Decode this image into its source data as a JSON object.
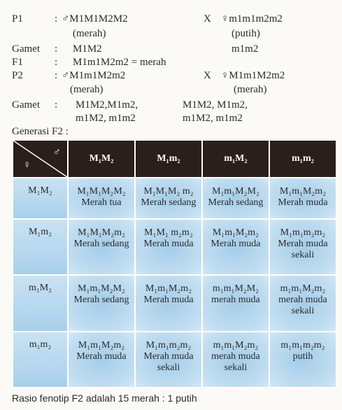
{
  "cross": {
    "p1": {
      "label": "P1",
      "colon": ":",
      "male_genotype": "♂M1M1M2M2",
      "x": "X",
      "female_genotype": "♀m1m1m2m2",
      "male_phenotype": "(merah)",
      "female_phenotype": "(putih)"
    },
    "gamet1": {
      "label": "Gamet",
      "colon": ":",
      "male": "M1M2",
      "female": "m1m2"
    },
    "f1": {
      "label": "F1",
      "colon": ":",
      "result": "M1m1M2m2 = merah"
    },
    "p2": {
      "label": "P2",
      "colon": ":",
      "male_genotype": "♂M1m1M2m2",
      "x": "X",
      "female_genotype": "♀M1m1M2m2",
      "male_phenotype": "(merah)",
      "female_phenotype": "(merah)"
    },
    "gamet2": {
      "label": "Gamet",
      "colon": ":",
      "male_line1": "M1M2,M1m2,",
      "male_line2": "m1M2, m1m2",
      "female_line1": "M1M2, M1m2,",
      "female_line2": "m1M2, m1m2"
    }
  },
  "generation_label": "Generasi F2 :",
  "punnett": {
    "corner_male": "♂",
    "corner_female": "♀",
    "headers": [
      "M₁M₂",
      "M₁m₂",
      "m₁M₂",
      "m₁m₂"
    ],
    "rows": [
      {
        "side": "M₁M₂",
        "cells": [
          {
            "genotype": "M₁M₁M₂M₂",
            "phenotype": [
              "Merah  tua"
            ]
          },
          {
            "genotype": "M₁M₁M₂ m₂",
            "phenotype": [
              "Merah sedang"
            ]
          },
          {
            "genotype": "M₁m₁M₂M₂",
            "phenotype": [
              "Merah sedang"
            ]
          },
          {
            "genotype": "M₁m₁M₂m₂",
            "phenotype": [
              "Merah muda"
            ]
          }
        ]
      },
      {
        "side": "M₁m₂",
        "cells": [
          {
            "genotype": "M₁M₁M₂m₂",
            "phenotype": [
              "Merah sedang"
            ]
          },
          {
            "genotype": "M₁M₁ m₂m₂",
            "phenotype": [
              "Merah muda"
            ]
          },
          {
            "genotype": "M₁m₁M₂m₂",
            "phenotype": [
              "Merah muda"
            ]
          },
          {
            "genotype": "M₁m₁m₂m₂",
            "phenotype": [
              "Merah muda",
              "sekali"
            ]
          }
        ]
      },
      {
        "side": "m₁M₂",
        "cells": [
          {
            "genotype": "M₁m₁M₂M₂",
            "phenotype": [
              "Merah sedang"
            ]
          },
          {
            "genotype": "M₁m₁M₂m₂",
            "phenotype": [
              "Merah muda"
            ]
          },
          {
            "genotype": "m₁m₁M₂M₂",
            "phenotype": [
              "merah muda"
            ]
          },
          {
            "genotype": "m₁m₁M₂m₂",
            "phenotype": [
              "merah muda",
              "sekali"
            ]
          }
        ]
      },
      {
        "side": "m₁m₂",
        "cells": [
          {
            "genotype": "M₁m₁M₂m₂",
            "phenotype": [
              "Merah muda"
            ]
          },
          {
            "genotype": "M₁m₁m₂m₂",
            "phenotype": [
              "Merah muda",
              "sekali"
            ]
          },
          {
            "genotype": "m₁m₁M₂m₂",
            "phenotype": [
              "merah muda",
              "sekali"
            ]
          },
          {
            "genotype": "m₁m₁m₂m₂",
            "phenotype": [
              "putih"
            ]
          }
        ]
      }
    ]
  },
  "footer": "Rasio fenotip F2 adalah 15 merah : 1 putih",
  "colors": {
    "header_bg": "#2b1f1c",
    "cell_blue": "#a4cde9",
    "cell_light": "#d3e8f6"
  }
}
